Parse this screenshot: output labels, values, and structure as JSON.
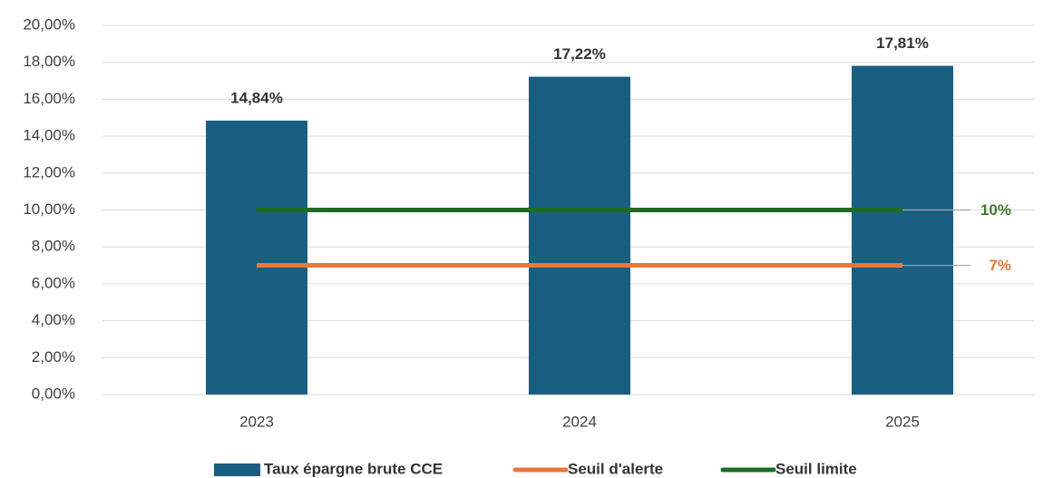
{
  "chart_data": {
    "type": "bar",
    "categories": [
      "2023",
      "2024",
      "2025"
    ],
    "series": [
      {
        "name": "Taux épargne brute CCE",
        "type": "bar",
        "color": "#1a5f82",
        "values": [
          14.84,
          17.22,
          17.81
        ],
        "value_labels": [
          "14,84%",
          "17,22%",
          "17,81%"
        ],
        "label_color": "#333333"
      },
      {
        "name": "Seuil d'alerte",
        "type": "line",
        "color": "#e9773a",
        "values": [
          7,
          7,
          7
        ],
        "value_labels": [
          null,
          null,
          "7%"
        ],
        "label_color": "#e9773a"
      },
      {
        "name": "Seuil limite",
        "type": "line",
        "color": "#1e6b24",
        "values": [
          10,
          10,
          10
        ],
        "value_labels": [
          null,
          null,
          "10%"
        ],
        "label_color": "#3f7a2a"
      }
    ],
    "ylim": [
      0,
      20
    ],
    "yticks": [
      {
        "value": 0,
        "label": "0,00%"
      },
      {
        "value": 2,
        "label": "2,00%"
      },
      {
        "value": 4,
        "label": "4,00%"
      },
      {
        "value": 6,
        "label": "6,00%"
      },
      {
        "value": 8,
        "label": "8,00%"
      },
      {
        "value": 10,
        "label": "10,00%"
      },
      {
        "value": 12,
        "label": "12,00%"
      },
      {
        "value": 14,
        "label": "14,00%"
      },
      {
        "value": 16,
        "label": "16,00%"
      },
      {
        "value": 18,
        "label": "18,00%"
      },
      {
        "value": 20,
        "label": "20,00%"
      }
    ],
    "grid": true,
    "legend": "bottom"
  }
}
